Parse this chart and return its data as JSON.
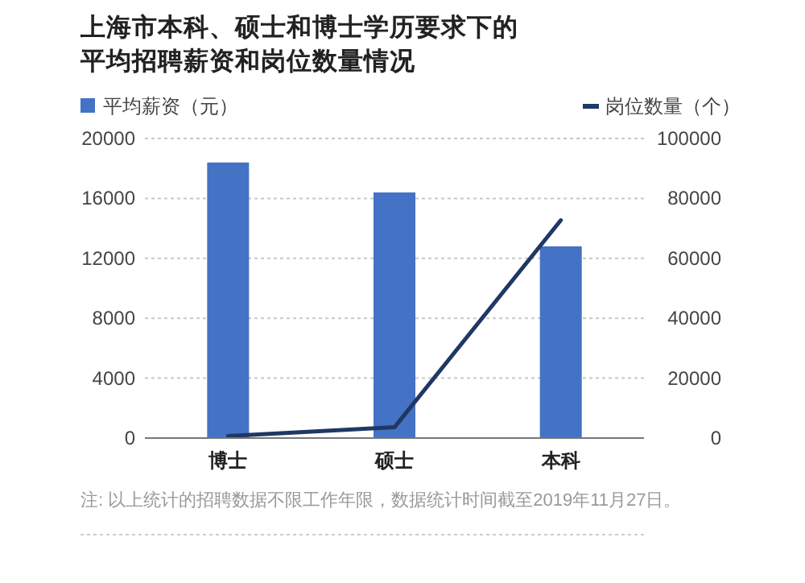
{
  "chart_data": {
    "type": "bar",
    "title": "上海市本科、硕士和博士学历要求下的平均招聘薪资和岗位数量情况",
    "categories": [
      "博士",
      "硕士",
      "本科"
    ],
    "series": [
      {
        "name": "平均薪资（元）",
        "color": "#4472c4",
        "values": [
          18400,
          16400,
          12800
        ]
      },
      {
        "name": "岗位数量（个）",
        "type": "line",
        "axis": "y2",
        "color": "#1f3864",
        "values": [
          700,
          3600,
          72700
        ]
      }
    ],
    "ylim": [
      0,
      20000
    ],
    "yticks": [
      0,
      4000,
      8000,
      12000,
      16000,
      20000
    ],
    "y2lim": [
      0,
      100000
    ],
    "y2ticks": [
      0,
      20000,
      40000,
      60000,
      80000,
      100000
    ],
    "grid": "y",
    "legend": "top",
    "annotations": [
      "注: 以上统计的招聘数据不限工作年限，数据统计时间截至2019年11月27日。"
    ]
  }
}
